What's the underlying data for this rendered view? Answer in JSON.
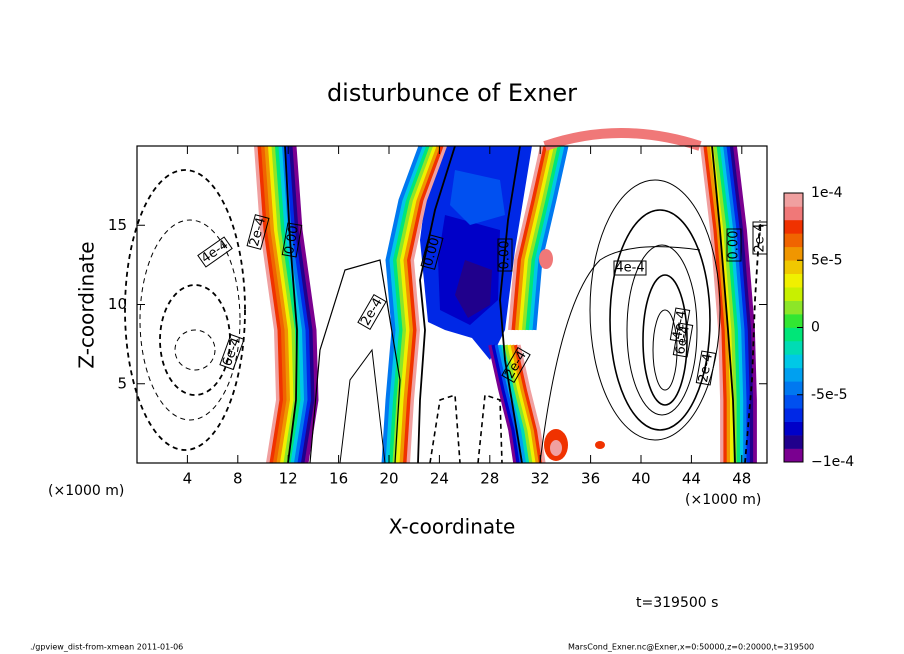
{
  "chart_data": {
    "type": "contour",
    "title": "disturbunce of Exner",
    "xlabel": "X-coordinate",
    "ylabel": "Z-coordinate",
    "x_unit": "(×1000 m)",
    "xlim": [
      0,
      50
    ],
    "xticks": [
      4,
      8,
      12,
      16,
      20,
      24,
      28,
      32,
      36,
      40,
      44,
      48
    ],
    "ylim": [
      0,
      20
    ],
    "yticks": [
      5,
      10,
      15
    ],
    "contour_labels": [
      "0.00",
      "0.00",
      "0.00",
      "0.00",
      "2e-4",
      "2e-4",
      "2e-4",
      "2e-4",
      "2e-4",
      "4e-4",
      "4e-4",
      "6e-4",
      "6e-4",
      "4e-4"
    ],
    "colorbar": {
      "lim": [
        -0.0001,
        0.0001
      ],
      "ticks": [
        {
          "value": 0.0001,
          "label": "1e-4"
        },
        {
          "value": 5e-05,
          "label": "5e-5"
        },
        0,
        {
          "value": -5e-05,
          "label": "-5e-5"
        },
        {
          "value": -0.0001,
          "label": "−1e-4"
        }
      ],
      "colors": [
        "#7a0090",
        "#20008c",
        "#0000c8",
        "#0028e6",
        "#0050f0",
        "#0078f0",
        "#00a0f0",
        "#00c8e6",
        "#00dcb4",
        "#00e678",
        "#32e632",
        "#8ce628",
        "#c8f000",
        "#f0f000",
        "#f0c800",
        "#f09600",
        "#f06400",
        "#f03200",
        "#f07878",
        "#f0a0a0"
      ]
    },
    "time_label": "t=319500 s",
    "footer_left": "./gpview_dist-from-xmean  2011-01-06",
    "footer_right": "MarsCond_Exner.nc@Exner,x=0:50000,z=0:20000,t=319500"
  }
}
